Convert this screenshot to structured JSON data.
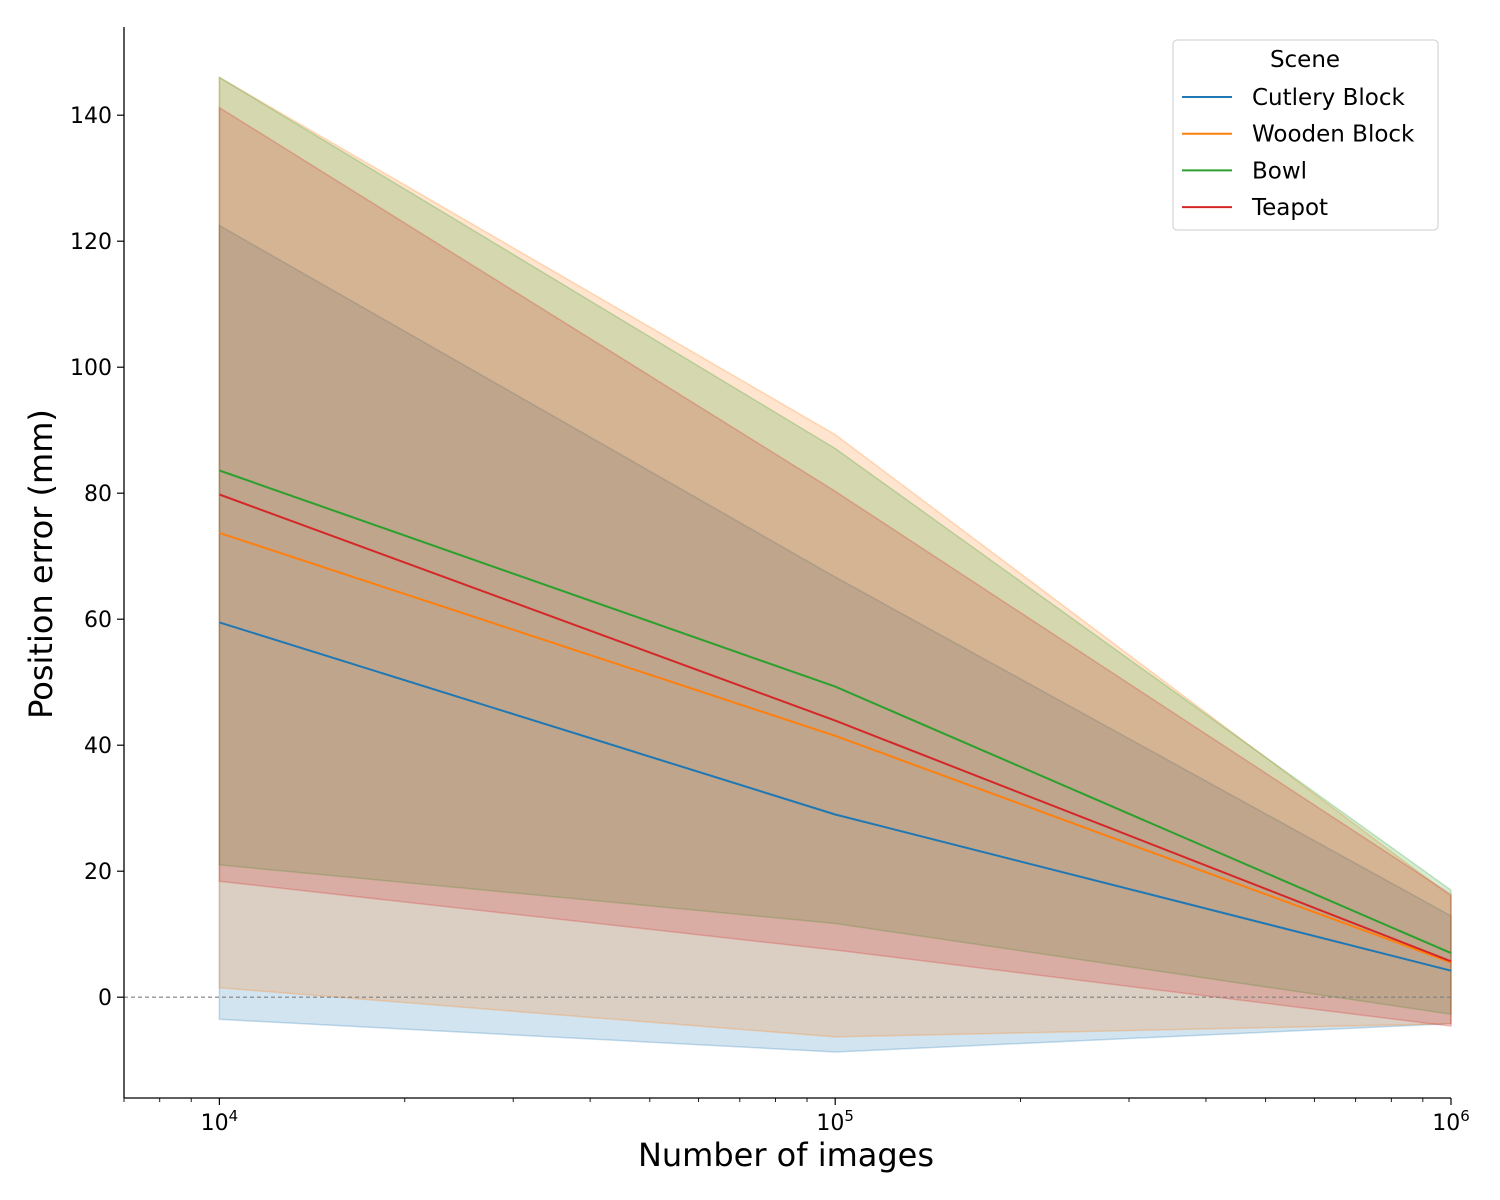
{
  "chart_data": {
    "type": "area",
    "xscale": "log",
    "x": [
      10000,
      100000,
      1000000
    ],
    "xlim": [
      7000,
      1000000
    ],
    "ylim": [
      -16,
      154
    ],
    "xlabel": "Number of images",
    "ylabel": "Position error (mm)",
    "xticks": [
      {
        "value": 10000,
        "base": "10",
        "exp": "4"
      },
      {
        "value": 100000,
        "base": "10",
        "exp": "5"
      },
      {
        "value": 1000000,
        "base": "10",
        "exp": "6"
      }
    ],
    "yticks": [
      0,
      20,
      40,
      60,
      80,
      100,
      120,
      140
    ],
    "reference_line": {
      "y": 0,
      "style": "dashed",
      "color": "#808080"
    },
    "legend": {
      "title": "Scene",
      "position": "top-right"
    },
    "grid": false,
    "series": [
      {
        "name": "Cutlery Block",
        "color": "#1f77b4",
        "mean": [
          59.5,
          29.0,
          4.2
        ],
        "lower": [
          -3.5,
          -8.7,
          -4.2
        ],
        "upper": [
          122.5,
          66.7,
          12.9
        ]
      },
      {
        "name": "Wooden Block",
        "color": "#ff7f0e",
        "mean": [
          73.7,
          41.5,
          5.5
        ],
        "lower": [
          1.5,
          -6.3,
          -4.2
        ],
        "upper": [
          146.0,
          89.3,
          16.0
        ]
      },
      {
        "name": "Bowl",
        "color": "#2ca02c",
        "mean": [
          83.6,
          49.3,
          7.0
        ],
        "lower": [
          21.0,
          11.7,
          -2.7
        ],
        "upper": [
          146.0,
          87.1,
          17.0
        ]
      },
      {
        "name": "Teapot",
        "color": "#d62728",
        "mean": [
          79.8,
          43.9,
          5.7
        ],
        "lower": [
          18.4,
          7.5,
          -4.6
        ],
        "upper": [
          141.2,
          80.3,
          16.3
        ]
      }
    ]
  }
}
